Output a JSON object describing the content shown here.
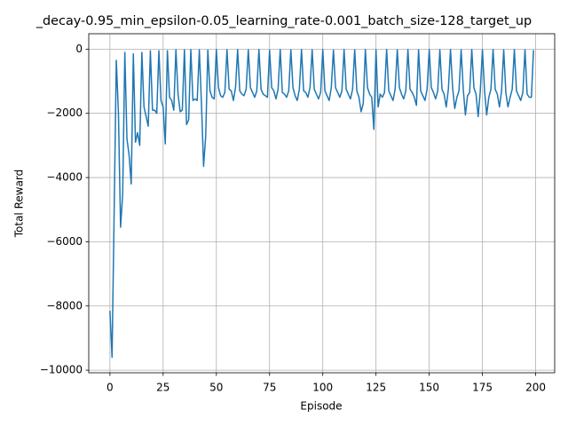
{
  "chart_data": {
    "type": "line",
    "title": "_decay-0.95_min_epsilon-0.05_learning_rate-0.001_batch_size-128_target_up",
    "x_label": "Episode",
    "y_label": "Total Reward",
    "grid": true,
    "xlim": [
      -9.95,
      208.95
    ],
    "ylim": [
      -10080,
      480
    ],
    "xticks": [
      0,
      25,
      50,
      75,
      100,
      125,
      150,
      175,
      200
    ],
    "yticks": [
      {
        "value": -10000,
        "label": "−10000"
      },
      {
        "value": -8000,
        "label": "−8000"
      },
      {
        "value": -6000,
        "label": "−6000"
      },
      {
        "value": -4000,
        "label": "−4000"
      },
      {
        "value": -2000,
        "label": "−2000"
      },
      0
    ],
    "series": [
      {
        "color": "#1f77b4",
        "x": [
          0,
          1,
          2,
          3,
          4,
          5,
          6,
          7,
          8,
          9,
          10,
          11,
          12,
          13,
          14,
          15,
          16,
          17,
          18,
          19,
          20,
          21,
          22,
          23,
          24,
          25,
          26,
          27,
          28,
          29,
          30,
          31,
          32,
          33,
          34,
          35,
          36,
          37,
          38,
          39,
          40,
          41,
          42,
          43,
          44,
          45,
          46,
          47,
          48,
          49,
          50,
          51,
          52,
          53,
          54,
          55,
          56,
          57,
          58,
          59,
          60,
          61,
          62,
          63,
          64,
          65,
          66,
          67,
          68,
          69,
          70,
          71,
          72,
          73,
          74,
          75,
          76,
          77,
          78,
          79,
          80,
          81,
          82,
          83,
          84,
          85,
          86,
          87,
          88,
          89,
          90,
          91,
          92,
          93,
          94,
          95,
          96,
          97,
          98,
          99,
          100,
          101,
          102,
          103,
          104,
          105,
          106,
          107,
          108,
          109,
          110,
          111,
          112,
          113,
          114,
          115,
          116,
          117,
          118,
          119,
          120,
          121,
          122,
          123,
          124,
          125,
          126,
          127,
          128,
          129,
          130,
          131,
          132,
          133,
          134,
          135,
          136,
          137,
          138,
          139,
          140,
          141,
          142,
          143,
          144,
          145,
          146,
          147,
          148,
          149,
          150,
          151,
          152,
          153,
          154,
          155,
          156,
          157,
          158,
          159,
          160,
          161,
          162,
          163,
          164,
          165,
          166,
          167,
          168,
          169,
          170,
          171,
          172,
          173,
          174,
          175,
          176,
          177,
          178,
          179,
          180,
          181,
          182,
          183,
          184,
          185,
          186,
          187,
          188,
          189,
          190,
          191,
          192,
          193,
          194,
          195,
          196,
          197,
          198,
          199
        ],
        "values": [
          -8150,
          -9600,
          -5000,
          -350,
          -2000,
          -5550,
          -4500,
          -100,
          -2800,
          -3300,
          -4200,
          -150,
          -2900,
          -2600,
          -3000,
          -100,
          -1800,
          -2100,
          -2400,
          -50,
          -1900,
          -1900,
          -2000,
          -50,
          -1600,
          -1800,
          -2950,
          -50,
          -1500,
          -1600,
          -1900,
          -20,
          -1400,
          -1950,
          -1900,
          -20,
          -2350,
          -2200,
          -10,
          -1600,
          -1550,
          -1600,
          -20,
          -1700,
          -3650,
          -2700,
          -30,
          -1300,
          -1500,
          -1550,
          -10,
          -1200,
          -1450,
          -1500,
          -1350,
          -20,
          -1250,
          -1300,
          -1600,
          -1200,
          -10,
          -1300,
          -1400,
          -1450,
          -1250,
          -20,
          -1200,
          -1350,
          -1500,
          -1300,
          -10,
          -1250,
          -1400,
          -1450,
          -1500,
          -30,
          -1200,
          -1300,
          -1550,
          -1250,
          -10,
          -1350,
          -1400,
          -1500,
          -1300,
          -20,
          -1200,
          -1450,
          -1600,
          -1250,
          -10,
          -1300,
          -1350,
          -1500,
          -1200,
          -20,
          -1250,
          -1400,
          -1550,
          -1350,
          -10,
          -1300,
          -1450,
          -1600,
          -1200,
          -30,
          -1200,
          -1350,
          -1500,
          -1300,
          -10,
          -1250,
          -1400,
          -1550,
          -1250,
          -20,
          -1300,
          -1500,
          -1950,
          -1700,
          -10,
          -1200,
          -1400,
          -1500,
          -2500,
          -20,
          -1800,
          -1400,
          -1500,
          -1350,
          -10,
          -1300,
          -1450,
          -1600,
          -1250,
          -20,
          -1200,
          -1400,
          -1550,
          -1300,
          -10,
          -1250,
          -1350,
          -1500,
          -1750,
          -20,
          -1300,
          -1450,
          -1600,
          -1250,
          -10,
          -1200,
          -1350,
          -1550,
          -1300,
          -20,
          -1250,
          -1400,
          -1800,
          -1250,
          -10,
          -1200,
          -1850,
          -1500,
          -1300,
          -20,
          -1250,
          -2050,
          -1450,
          -1350,
          -10,
          -1200,
          -1400,
          -2100,
          -1300,
          -20,
          -1300,
          -2050,
          -1500,
          -1250,
          -10,
          -1250,
          -1400,
          -1800,
          -1300,
          -20,
          -1350,
          -1800,
          -1500,
          -1250,
          -10,
          -1300,
          -1450,
          -1600,
          -1350,
          -20,
          -1400,
          -1500,
          -1500,
          -30
        ]
      }
    ]
  }
}
